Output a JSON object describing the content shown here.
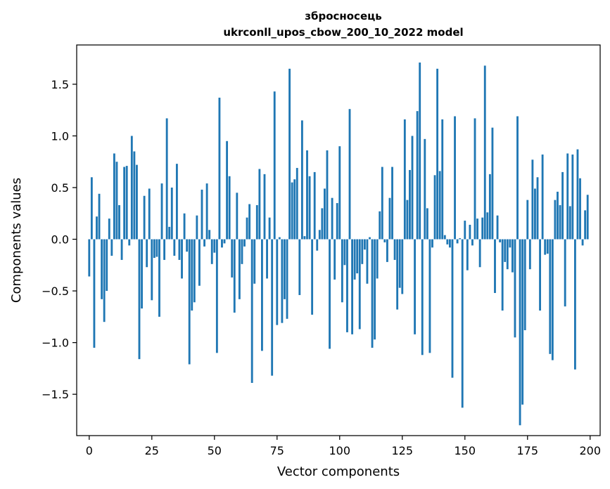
{
  "chart_data": {
    "type": "bar",
    "title": "збросносець",
    "subtitle": "ukrconll_upos_cbow_200_10_2022 model",
    "xlabel": "Vector components",
    "ylabel": "Components values",
    "xlim": [
      -5,
      204
    ],
    "ylim": [
      -1.9,
      1.88
    ],
    "xticks": [
      0,
      25,
      50,
      75,
      100,
      125,
      150,
      175,
      200
    ],
    "xtick_labels": [
      "0",
      "25",
      "50",
      "75",
      "100",
      "125",
      "150",
      "175",
      "200"
    ],
    "yticks": [
      -1.5,
      -1.0,
      -0.5,
      0.0,
      0.5,
      1.0,
      1.5
    ],
    "ytick_labels": [
      "−1.5",
      "−1.0",
      "−0.5",
      "0.0",
      "0.5",
      "1.0",
      "1.5"
    ],
    "bar_color": "#1f77b4",
    "x": [
      0,
      1,
      2,
      3,
      4,
      5,
      6,
      7,
      8,
      9,
      10,
      11,
      12,
      13,
      14,
      15,
      16,
      17,
      18,
      19,
      20,
      21,
      22,
      23,
      24,
      25,
      26,
      27,
      28,
      29,
      30,
      31,
      32,
      33,
      34,
      35,
      36,
      37,
      38,
      39,
      40,
      41,
      42,
      43,
      44,
      45,
      46,
      47,
      48,
      49,
      50,
      51,
      52,
      53,
      54,
      55,
      56,
      57,
      58,
      59,
      60,
      61,
      62,
      63,
      64,
      65,
      66,
      67,
      68,
      69,
      70,
      71,
      72,
      73,
      74,
      75,
      76,
      77,
      78,
      79,
      80,
      81,
      82,
      83,
      84,
      85,
      86,
      87,
      88,
      89,
      90,
      91,
      92,
      93,
      94,
      95,
      96,
      97,
      98,
      99,
      100,
      101,
      102,
      103,
      104,
      105,
      106,
      107,
      108,
      109,
      110,
      111,
      112,
      113,
      114,
      115,
      116,
      117,
      118,
      119,
      120,
      121,
      122,
      123,
      124,
      125,
      126,
      127,
      128,
      129,
      130,
      131,
      132,
      133,
      134,
      135,
      136,
      137,
      138,
      139,
      140,
      141,
      142,
      143,
      144,
      145,
      146,
      147,
      148,
      149,
      150,
      151,
      152,
      153,
      154,
      155,
      156,
      157,
      158,
      159,
      160,
      161,
      162,
      163,
      164,
      165,
      166,
      167,
      168,
      169,
      170,
      171,
      172,
      173,
      174,
      175,
      176,
      177,
      178,
      179,
      180,
      181,
      182,
      183,
      184,
      185,
      186,
      187,
      188,
      189,
      190,
      191,
      192,
      193,
      194,
      195,
      196,
      197,
      198,
      199
    ],
    "values": [
      -0.36,
      0.6,
      -1.05,
      0.22,
      0.44,
      -0.58,
      -0.8,
      -0.5,
      0.2,
      -0.16,
      0.83,
      0.75,
      0.33,
      -0.2,
      0.7,
      0.71,
      -0.06,
      1.0,
      0.85,
      0.72,
      -1.16,
      -0.67,
      0.42,
      -0.27,
      0.49,
      -0.59,
      -0.18,
      -0.17,
      -0.75,
      0.54,
      -0.2,
      1.17,
      0.12,
      0.5,
      -0.16,
      0.73,
      -0.2,
      -0.38,
      0.25,
      -0.12,
      -1.21,
      -0.69,
      -0.61,
      0.23,
      -0.45,
      0.48,
      -0.07,
      0.54,
      0.09,
      -0.24,
      -0.13,
      -1.1,
      1.37,
      -0.08,
      -0.04,
      0.95,
      0.61,
      -0.37,
      -0.71,
      0.45,
      -0.58,
      -0.24,
      -0.07,
      0.21,
      0.34,
      -1.39,
      -0.43,
      0.33,
      0.68,
      -1.08,
      0.63,
      -0.38,
      0.21,
      -1.32,
      1.43,
      -0.83,
      0.02,
      -0.81,
      -0.58,
      -0.77,
      1.65,
      0.55,
      0.58,
      0.69,
      -0.54,
      1.15,
      0.03,
      0.86,
      0.61,
      -0.73,
      0.65,
      -0.11,
      0.09,
      0.3,
      0.49,
      0.86,
      -1.06,
      0.4,
      -0.39,
      0.35,
      0.9,
      -0.61,
      -0.25,
      -0.9,
      1.26,
      -0.92,
      -0.39,
      -0.33,
      -0.87,
      -0.24,
      -0.1,
      -0.43,
      0.02,
      -1.05,
      -0.97,
      -0.38,
      0.27,
      0.7,
      -0.03,
      -0.22,
      0.4,
      0.7,
      -0.2,
      -0.68,
      -0.47,
      -0.53,
      1.16,
      0.38,
      0.67,
      1.0,
      -0.92,
      1.24,
      1.71,
      -1.12,
      0.97,
      0.3,
      -1.1,
      -0.08,
      0.62,
      1.65,
      0.66,
      1.16,
      0.04,
      -0.05,
      -0.08,
      -1.34,
      1.19,
      -0.04,
      0.01,
      -1.63,
      0.18,
      -0.3,
      0.14,
      -0.06,
      1.17,
      0.2,
      -0.27,
      0.21,
      1.68,
      0.26,
      0.63,
      1.08,
      -0.52,
      0.23,
      -0.03,
      -0.69,
      -0.22,
      -0.29,
      -0.08,
      -0.32,
      -0.95,
      1.19,
      -1.8,
      -1.6,
      -0.88,
      0.38,
      -0.29,
      0.77,
      0.49,
      0.6,
      -0.69,
      0.82,
      -0.15,
      -0.14,
      -1.11,
      -1.17,
      0.38,
      0.46,
      0.33,
      0.65,
      -0.65,
      0.83,
      0.32,
      0.82,
      -1.26,
      0.87,
      0.59,
      -0.06,
      0.28,
      0.43
    ]
  }
}
